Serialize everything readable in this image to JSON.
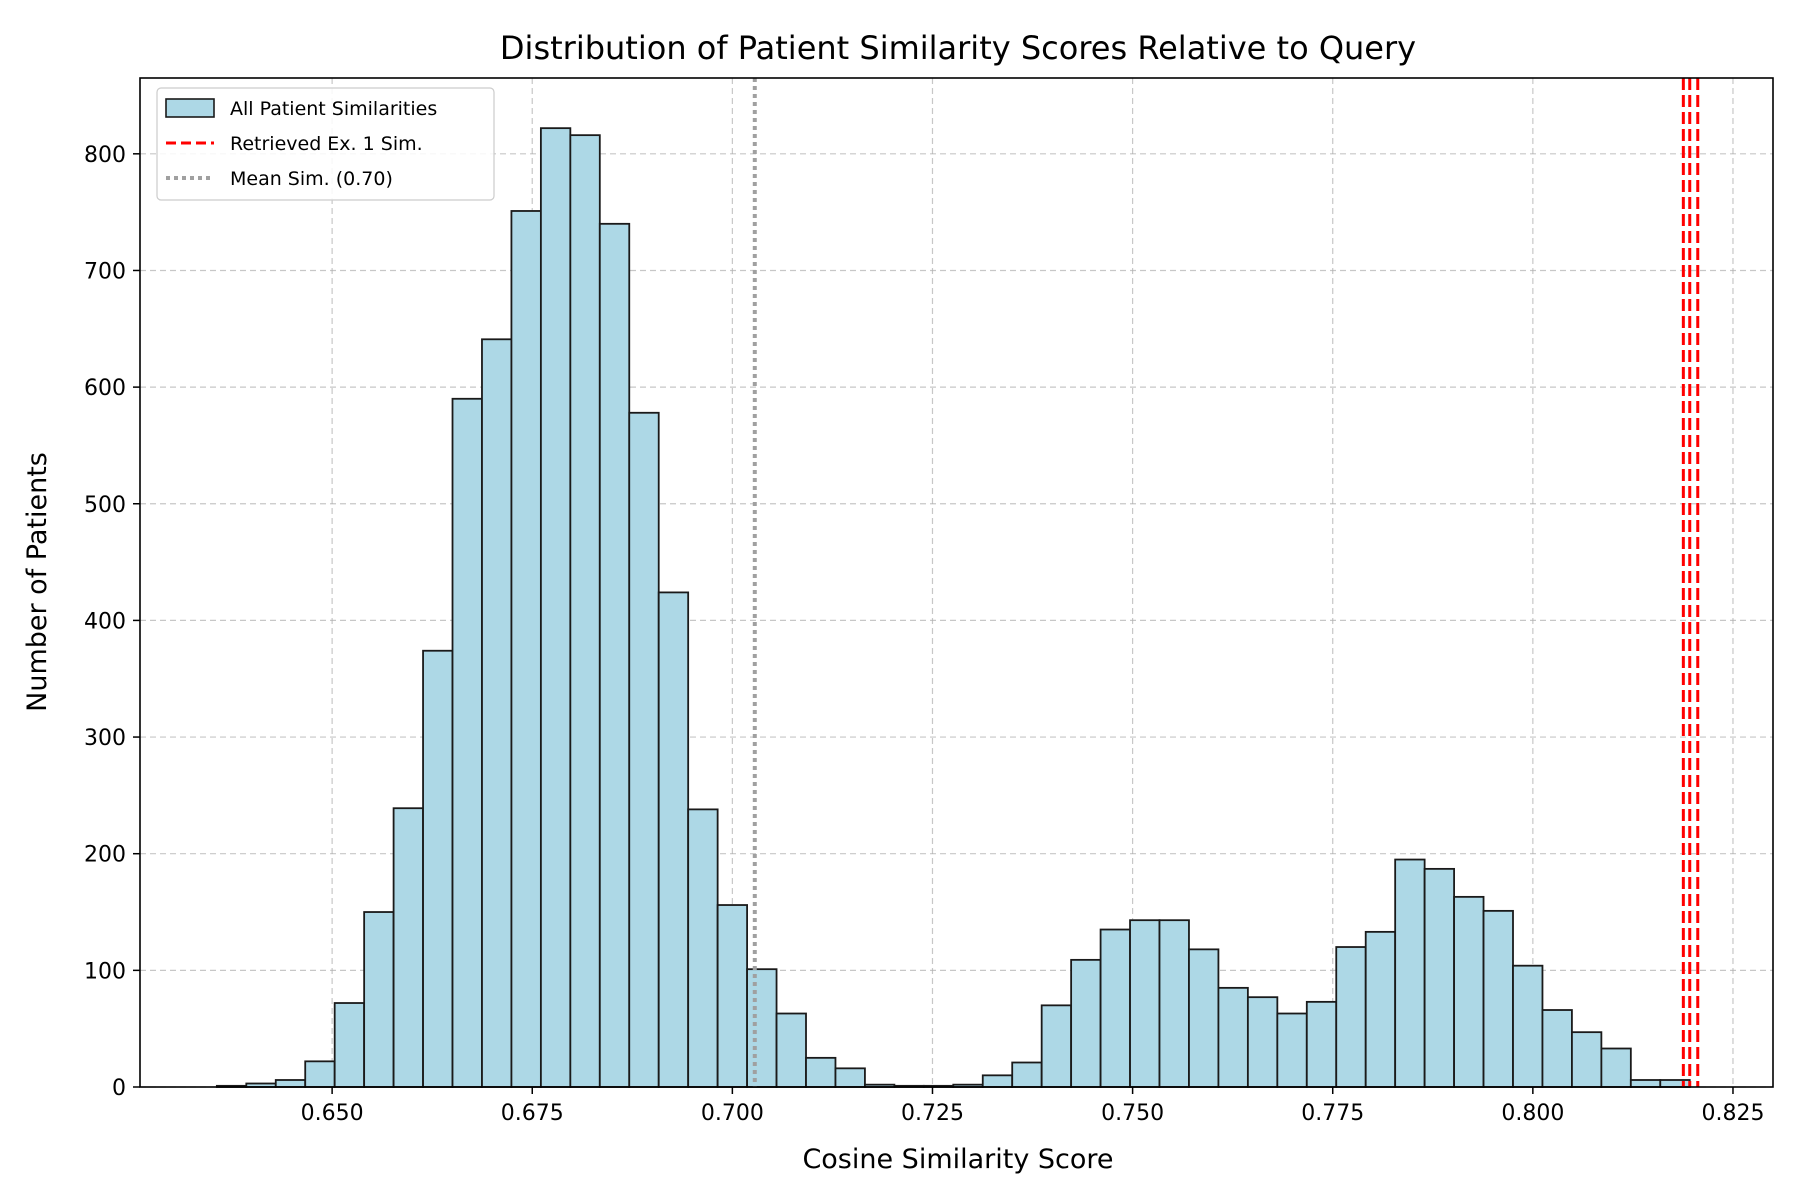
{
  "chart_data": {
    "type": "bar",
    "title": "Distribution of Patient Similarity Scores Relative to Query",
    "xlabel": "Cosine Similarity Score",
    "ylabel": "Number of Patients",
    "xlim": [
      0.626,
      0.83
    ],
    "ylim": [
      0,
      865
    ],
    "x_ticks": [
      0.65,
      0.675,
      0.7,
      0.725,
      0.75,
      0.775,
      0.8,
      0.825
    ],
    "x_tick_labels": [
      "0.650",
      "0.675",
      "0.700",
      "0.725",
      "0.750",
      "0.775",
      "0.800",
      "0.825"
    ],
    "y_ticks": [
      0,
      100,
      200,
      300,
      400,
      500,
      600,
      700,
      800
    ],
    "y_tick_labels": [
      "0",
      "100",
      "200",
      "300",
      "400",
      "500",
      "600",
      "700",
      "800"
    ],
    "grid": true,
    "legend_position": "top-left",
    "bin_start": 0.6356,
    "bin_width": 0.00368,
    "counts": [
      1,
      3,
      6,
      22,
      72,
      150,
      239,
      374,
      590,
      641,
      751,
      822,
      816,
      740,
      578,
      424,
      238,
      156,
      101,
      63,
      25,
      16,
      2,
      1,
      1,
      2,
      10,
      21,
      70,
      109,
      135,
      143,
      143,
      118,
      85,
      77,
      63,
      73,
      120,
      133,
      195,
      187,
      163,
      151,
      104,
      66,
      47,
      33,
      6,
      6
    ],
    "series": [
      {
        "name": "All Patient Similarities",
        "kind": "histogram",
        "fill": "#add8e6",
        "edge": "#1a1a1a"
      },
      {
        "name": "Retrieved Ex. 1 Sim.",
        "kind": "vline",
        "color": "#ff0000",
        "style": "dashed",
        "x_values": [
          0.8188,
          0.8196,
          0.8206
        ]
      },
      {
        "name": "Mean Sim. (0.70)",
        "kind": "vline",
        "color": "#a0a0a0",
        "style": "dotted",
        "x_values": [
          0.7028
        ]
      }
    ]
  }
}
